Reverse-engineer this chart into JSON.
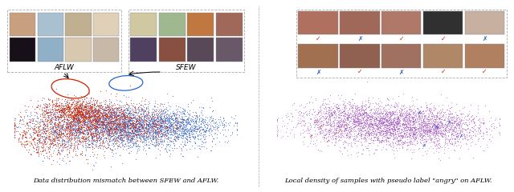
{
  "fig_width": 6.4,
  "fig_height": 2.4,
  "dpi": 100,
  "bg_color": "#ffffff",
  "left_caption": "Data distribution mismatch between SFEW and AFLW.",
  "right_caption": "Local density of samples with pseudo label \"angry\" on AFLW.",
  "left_label_aflw": "AFLW",
  "left_label_sfew": "SFEW",
  "scatter1_red_count": 3000,
  "scatter1_blue_count": 4000,
  "scatter1_red_color": "#cc2200",
  "scatter1_blue_color": "#3366cc",
  "scatter2_purple_count": 4000,
  "scatter2_purple_color": "#9944bb",
  "scatter2_check_red_color": "#cc2200",
  "scatter2_x_blue_color": "#2255cc",
  "ellipse1_color": "#cc2200",
  "ellipse2_color": "#2266cc",
  "caption_fontsize": 6.0,
  "label_fontsize": 6.5,
  "seed": 42,
  "aflw_colors_r0": [
    "#c8a080",
    "#a8c0d0",
    "#c0b090",
    "#e0d0b8"
  ],
  "aflw_colors_r1": [
    "#181018",
    "#90b0c8",
    "#d8c8b0",
    "#c8b8a8"
  ],
  "sfew_colors_r0": [
    "#d0c8a0",
    "#a0b890",
    "#c07840",
    "#a06858"
  ],
  "sfew_colors_r1": [
    "#504060",
    "#885040",
    "#584858",
    "#685868"
  ],
  "right_colors_r0": [
    "#b07060",
    "#a06858",
    "#b07868",
    "#303030",
    "#c8b0a0"
  ],
  "right_colors_r1": [
    "#a07050",
    "#906050",
    "#a07060",
    "#b08868",
    "#b08060"
  ],
  "marks_top": [
    "✓",
    "✗",
    "✓",
    "✓",
    "✗"
  ],
  "marks_bot": [
    "✗",
    "✓",
    "✗",
    "✓",
    "✓"
  ],
  "mark_colors_top": [
    "#cc2200",
    "#2255cc",
    "#cc2200",
    "#cc2200",
    "#2255cc"
  ],
  "mark_colors_bot": [
    "#2255cc",
    "#cc2200",
    "#2255cc",
    "#cc2200",
    "#cc2200"
  ]
}
